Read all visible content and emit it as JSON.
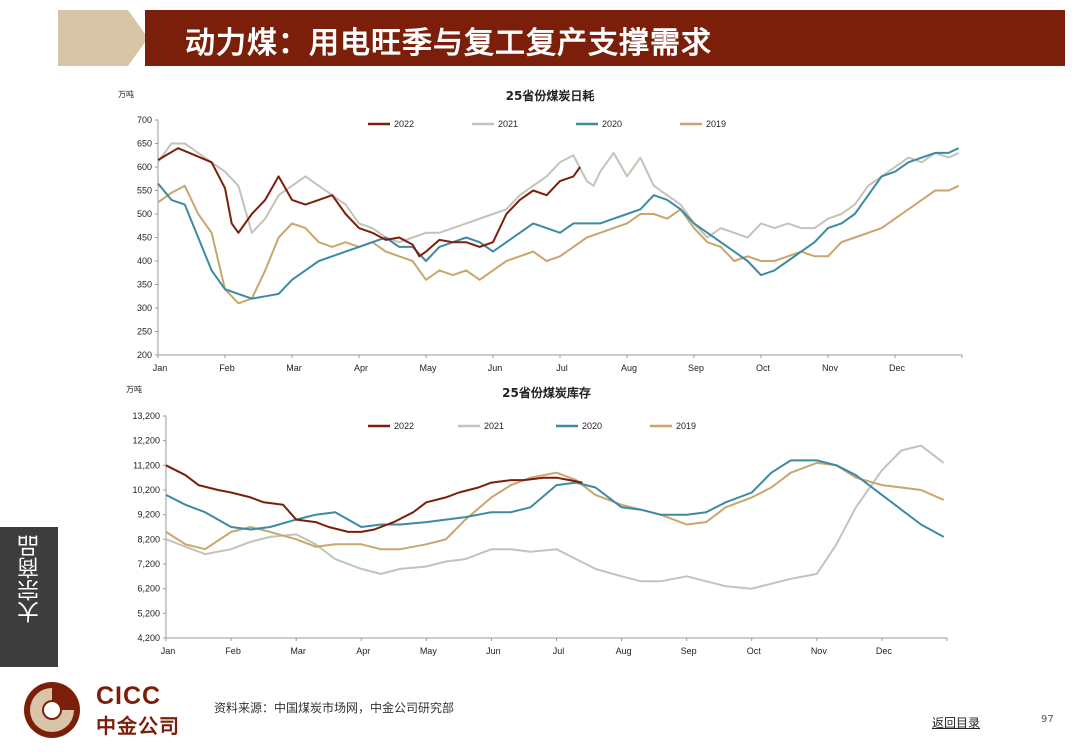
{
  "header": {
    "title": "动力煤：用电旺季与复工复产支撑需求"
  },
  "side_tab": {
    "label": "大宗商品"
  },
  "footer": {
    "source": "资料来源：中国煤炭市场网，中金公司研究部",
    "back_link": "返回目录",
    "page_number": "97",
    "logo_en": "CICC",
    "logo_cn": "中金公司"
  },
  "colors": {
    "title_bg": "#7b1f0a",
    "s2022": "#7b1f0a",
    "s2021": "#c3c3b9",
    "s2020": "#3d8aa3",
    "s2019": "#c9a66b"
  },
  "chart_data": [
    {
      "type": "line",
      "title": "25省份煤炭日耗",
      "ylabel": "万吨",
      "ylim": [
        200,
        700
      ],
      "yticks": [
        "200",
        "250",
        "300",
        "350",
        "400",
        "450",
        "500",
        "550",
        "600",
        "650",
        "700"
      ],
      "xticks": [
        "Jan",
        "Feb",
        "Mar",
        "Apr",
        "May",
        "Jun",
        "Jul",
        "Aug",
        "Sep",
        "Oct",
        "Nov",
        "Dec"
      ],
      "legend": "top",
      "series": [
        {
          "name": "2022",
          "x": [
            0,
            0.3,
            0.5,
            0.8,
            1.0,
            1.1,
            1.2,
            1.4,
            1.6,
            1.8,
            2.0,
            2.2,
            2.4,
            2.6,
            2.8,
            3.0,
            3.2,
            3.4,
            3.6,
            3.8,
            3.9,
            4.0,
            4.2,
            4.4,
            4.6,
            4.8,
            5.0,
            5.2,
            5.4,
            5.6,
            5.8,
            6.0,
            6.2,
            6.3
          ],
          "y": [
            615,
            640,
            628,
            610,
            555,
            480,
            460,
            500,
            530,
            580,
            530,
            520,
            530,
            540,
            500,
            470,
            460,
            445,
            450,
            435,
            410,
            420,
            445,
            440,
            440,
            430,
            440,
            500,
            530,
            550,
            540,
            570,
            580,
            600
          ]
        },
        {
          "name": "2021",
          "x": [
            0,
            0.2,
            0.4,
            0.6,
            0.8,
            1.0,
            1.2,
            1.4,
            1.6,
            1.8,
            2.0,
            2.2,
            2.4,
            2.6,
            2.8,
            3.0,
            3.2,
            3.4,
            3.6,
            3.8,
            4.0,
            4.2,
            4.4,
            4.6,
            4.8,
            5.0,
            5.2,
            5.4,
            5.6,
            5.8,
            6.0,
            6.2,
            6.4,
            6.5,
            6.6,
            6.8,
            7.0,
            7.2,
            7.4,
            7.6,
            7.8,
            8.0,
            8.2,
            8.4,
            8.6,
            8.8,
            9.0,
            9.2,
            9.4,
            9.6,
            9.8,
            10.0,
            10.2,
            10.4,
            10.6,
            10.8,
            11.0,
            11.2,
            11.4,
            11.6,
            11.8,
            11.95
          ],
          "y": [
            610,
            650,
            650,
            630,
            610,
            590,
            560,
            460,
            490,
            540,
            560,
            580,
            560,
            540,
            520,
            480,
            470,
            450,
            440,
            450,
            460,
            460,
            470,
            480,
            490,
            500,
            510,
            540,
            560,
            580,
            610,
            625,
            570,
            560,
            590,
            630,
            580,
            620,
            560,
            540,
            520,
            480,
            450,
            470,
            460,
            450,
            480,
            470,
            480,
            470,
            470,
            490,
            500,
            520,
            560,
            580,
            600,
            620,
            610,
            630,
            620,
            630
          ]
        },
        {
          "name": "2020",
          "x": [
            0,
            0.2,
            0.4,
            0.6,
            0.8,
            1.0,
            1.2,
            1.4,
            1.6,
            1.8,
            2.0,
            2.2,
            2.4,
            2.6,
            2.8,
            3.0,
            3.2,
            3.4,
            3.6,
            3.8,
            4.0,
            4.2,
            4.4,
            4.6,
            4.8,
            5.0,
            5.2,
            5.4,
            5.6,
            5.8,
            6.0,
            6.2,
            6.4,
            6.6,
            6.8,
            7.0,
            7.2,
            7.4,
            7.6,
            7.8,
            8.0,
            8.2,
            8.4,
            8.6,
            8.8,
            9.0,
            9.2,
            9.4,
            9.6,
            9.8,
            10.0,
            10.2,
            10.4,
            10.6,
            10.8,
            11.0,
            11.2,
            11.4,
            11.6,
            11.8,
            11.95
          ],
          "y": [
            565,
            530,
            520,
            450,
            380,
            340,
            330,
            320,
            325,
            330,
            360,
            380,
            400,
            410,
            420,
            430,
            440,
            450,
            430,
            430,
            400,
            430,
            440,
            450,
            440,
            420,
            440,
            460,
            480,
            470,
            460,
            480,
            480,
            480,
            490,
            500,
            510,
            540,
            530,
            510,
            480,
            460,
            440,
            420,
            400,
            370,
            380,
            400,
            420,
            440,
            470,
            480,
            500,
            540,
            580,
            590,
            610,
            620,
            630,
            630,
            640
          ]
        },
        {
          "name": "2019",
          "x": [
            0,
            0.2,
            0.4,
            0.6,
            0.8,
            1.0,
            1.2,
            1.4,
            1.6,
            1.8,
            2.0,
            2.2,
            2.4,
            2.6,
            2.8,
            3.0,
            3.2,
            3.4,
            3.6,
            3.8,
            4.0,
            4.2,
            4.4,
            4.6,
            4.8,
            5.0,
            5.2,
            5.4,
            5.6,
            5.8,
            6.0,
            6.2,
            6.4,
            6.6,
            6.8,
            7.0,
            7.2,
            7.4,
            7.6,
            7.8,
            8.0,
            8.2,
            8.4,
            8.6,
            8.8,
            9.0,
            9.2,
            9.4,
            9.6,
            9.8,
            10.0,
            10.2,
            10.4,
            10.6,
            10.8,
            11.0,
            11.2,
            11.4,
            11.6,
            11.8,
            11.95
          ],
          "y": [
            525,
            545,
            560,
            500,
            460,
            340,
            310,
            320,
            380,
            450,
            480,
            470,
            440,
            430,
            440,
            430,
            440,
            420,
            410,
            400,
            360,
            380,
            370,
            380,
            360,
            380,
            400,
            410,
            420,
            400,
            410,
            430,
            450,
            460,
            470,
            480,
            500,
            500,
            490,
            510,
            470,
            440,
            430,
            400,
            410,
            400,
            400,
            410,
            420,
            410,
            410,
            440,
            450,
            460,
            470,
            490,
            510,
            530,
            550,
            550,
            560
          ]
        }
      ]
    },
    {
      "type": "line",
      "title": "25省份煤炭库存",
      "ylabel": "万吨",
      "ylim": [
        4200,
        13200
      ],
      "yticks": [
        "4,200",
        "5,200",
        "6,200",
        "7,200",
        "8,200",
        "9,200",
        "10,200",
        "11,200",
        "12,200",
        "13,200"
      ],
      "xticks": [
        "Jan",
        "Feb",
        "Mar",
        "Apr",
        "May",
        "Jun",
        "Jul",
        "Aug",
        "Sep",
        "Oct",
        "Nov",
        "Dec"
      ],
      "legend": "top",
      "series": [
        {
          "name": "2022",
          "x": [
            0,
            0.3,
            0.5,
            0.8,
            1.0,
            1.3,
            1.5,
            1.8,
            2.0,
            2.3,
            2.5,
            2.8,
            3.0,
            3.2,
            3.5,
            3.8,
            4.0,
            4.3,
            4.5,
            4.8,
            5.0,
            5.3,
            5.5,
            5.8,
            6.0,
            6.2,
            6.4
          ],
          "y": [
            11200,
            10800,
            10400,
            10200,
            10100,
            9900,
            9700,
            9600,
            9000,
            8900,
            8700,
            8500,
            8500,
            8600,
            8900,
            9300,
            9700,
            9900,
            10100,
            10300,
            10500,
            10600,
            10600,
            10700,
            10700,
            10600,
            10500
          ]
        },
        {
          "name": "2021",
          "x": [
            0,
            0.3,
            0.6,
            1.0,
            1.3,
            1.6,
            2.0,
            2.3,
            2.6,
            3.0,
            3.3,
            3.6,
            4.0,
            4.3,
            4.6,
            5.0,
            5.3,
            5.6,
            6.0,
            6.3,
            6.6,
            7.0,
            7.3,
            7.6,
            8.0,
            8.3,
            8.6,
            9.0,
            9.3,
            9.6,
            10.0,
            10.3,
            10.6,
            11.0,
            11.3,
            11.6,
            11.95
          ],
          "y": [
            8200,
            7900,
            7600,
            7800,
            8100,
            8300,
            8400,
            8000,
            7400,
            7000,
            6800,
            7000,
            7100,
            7300,
            7400,
            7800,
            7800,
            7700,
            7800,
            7400,
            7000,
            6700,
            6500,
            6500,
            6700,
            6500,
            6300,
            6200,
            6400,
            6600,
            6800,
            8000,
            9500,
            11000,
            11800,
            12000,
            11300
          ]
        },
        {
          "name": "2020",
          "x": [
            0,
            0.3,
            0.6,
            1.0,
            1.3,
            1.6,
            2.0,
            2.3,
            2.6,
            3.0,
            3.3,
            3.6,
            4.0,
            4.3,
            4.6,
            5.0,
            5.3,
            5.6,
            6.0,
            6.3,
            6.6,
            7.0,
            7.3,
            7.6,
            8.0,
            8.3,
            8.6,
            9.0,
            9.3,
            9.6,
            10.0,
            10.3,
            10.6,
            11.0,
            11.3,
            11.6,
            11.95
          ],
          "y": [
            10000,
            9600,
            9300,
            8700,
            8600,
            8700,
            9000,
            9200,
            9300,
            8700,
            8800,
            8800,
            8900,
            9000,
            9100,
            9300,
            9300,
            9500,
            10400,
            10500,
            10300,
            9500,
            9400,
            9200,
            9200,
            9300,
            9700,
            10100,
            10900,
            11400,
            11400,
            11200,
            10800,
            10000,
            9400,
            8800,
            8300
          ]
        },
        {
          "name": "2019",
          "x": [
            0,
            0.3,
            0.6,
            1.0,
            1.3,
            1.6,
            2.0,
            2.3,
            2.6,
            3.0,
            3.3,
            3.6,
            4.0,
            4.3,
            4.6,
            5.0,
            5.3,
            5.6,
            6.0,
            6.3,
            6.6,
            7.0,
            7.3,
            7.6,
            8.0,
            8.3,
            8.6,
            9.0,
            9.3,
            9.6,
            10.0,
            10.3,
            10.6,
            11.0,
            11.3,
            11.6,
            11.95
          ],
          "y": [
            8500,
            8000,
            7800,
            8500,
            8700,
            8500,
            8200,
            7900,
            8000,
            8000,
            7800,
            7800,
            8000,
            8200,
            9000,
            9900,
            10400,
            10700,
            10900,
            10600,
            10000,
            9600,
            9400,
            9200,
            8800,
            8900,
            9500,
            9900,
            10300,
            10900,
            11300,
            11200,
            10700,
            10400,
            10300,
            10200,
            9800
          ]
        }
      ]
    }
  ]
}
